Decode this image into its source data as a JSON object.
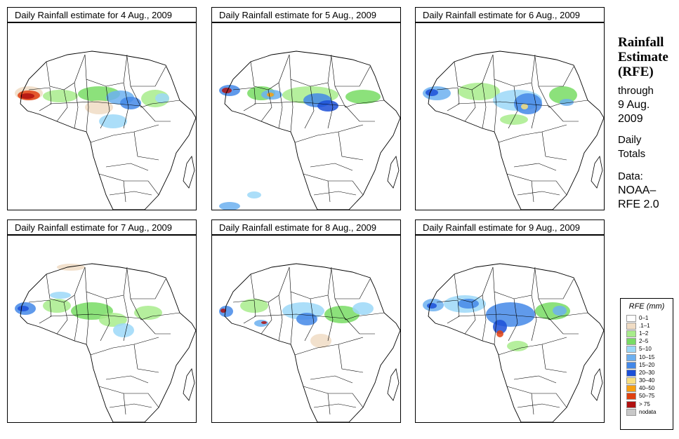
{
  "panels": [
    {
      "title": "Daily Rainfall estimate for  4 Aug., 2009",
      "date": "4 Aug., 2009"
    },
    {
      "title": "Daily Rainfall estimate for  5 Aug., 2009",
      "date": "5 Aug., 2009"
    },
    {
      "title": "Daily Rainfall estimate for  6 Aug., 2009",
      "date": "6 Aug., 2009"
    },
    {
      "title": "Daily Rainfall estimate for  7 Aug., 2009",
      "date": "7 Aug., 2009"
    },
    {
      "title": "Daily Rainfall estimate for  8 Aug., 2009",
      "date": "8 Aug., 2009"
    },
    {
      "title": "Daily Rainfall estimate for  9 Aug., 2009",
      "date": "9 Aug., 2009"
    }
  ],
  "sidebar": {
    "heading_line1": "Rainfall",
    "heading_line2": "Estimate",
    "heading_line3": "(RFE)",
    "through": "through",
    "date_line1": "9 Aug.",
    "date_line2": "2009",
    "daily": "Daily",
    "totals": "Totals",
    "data_label": "Data:",
    "source_line1": "NOAA–",
    "source_line2": "RFE 2.0"
  },
  "legend": {
    "title": "RFE (mm)",
    "items": [
      {
        "label": "0–1",
        "color": "#ffffff"
      },
      {
        "label": ".1–1",
        "color": "#f0dcc4"
      },
      {
        "label": "1–2",
        "color": "#a8ec8c"
      },
      {
        "label": "2–5",
        "color": "#78dc64"
      },
      {
        "label": "5–10",
        "color": "#9cd8f8"
      },
      {
        "label": "10–15",
        "color": "#6cb0f0"
      },
      {
        "label": "15–20",
        "color": "#4488e8"
      },
      {
        "label": "20–30",
        "color": "#1c50d8"
      },
      {
        "label": "30–40",
        "color": "#f8e080"
      },
      {
        "label": "40–50",
        "color": "#f8a010"
      },
      {
        "label": "50–75",
        "color": "#e04010"
      },
      {
        "label": "> 75",
        "color": "#b01010"
      },
      {
        "label": "nodata",
        "color": "#c8c8c8"
      }
    ]
  }
}
